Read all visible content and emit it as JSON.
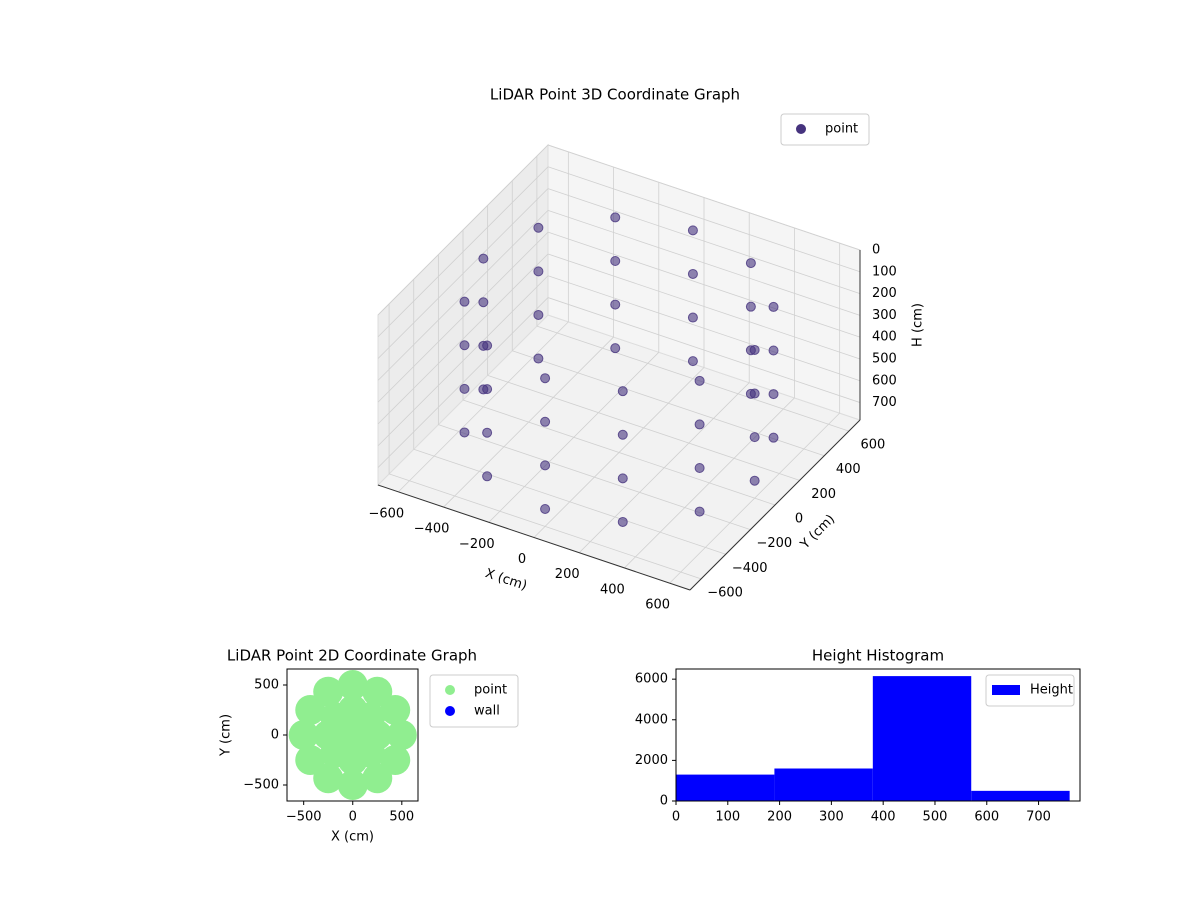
{
  "chart_data": [
    {
      "type": "scatter3d",
      "title": "LiDAR Point 3D Coordinate Graph",
      "xlabel": "X (cm)",
      "ylabel": "Y (cm)",
      "zlabel": "H (cm)",
      "xlim": [
        -690,
        690
      ],
      "ylim": [
        -690,
        690
      ],
      "zlim": [
        0,
        780
      ],
      "z_inverted": true,
      "grid": true,
      "legend": "upper right",
      "xticks": [
        {
          "value": -600,
          "label": "−600"
        },
        {
          "value": -400,
          "label": "−400"
        },
        {
          "value": -200,
          "label": "−200"
        },
        0,
        200,
        400,
        600
      ],
      "yticks": [
        {
          "value": -600,
          "label": "−600"
        },
        {
          "value": -400,
          "label": "−400"
        },
        {
          "value": -200,
          "label": "−200"
        },
        0,
        200,
        400,
        600
      ],
      "zticks": [
        0,
        100,
        200,
        300,
        400,
        500,
        600,
        700
      ],
      "series": [
        {
          "name": "point",
          "color": "#46337e",
          "x": [
            600,
            520,
            300,
            0,
            -300,
            -520,
            -600,
            -520,
            -300,
            0,
            300,
            520,
            600,
            520,
            300,
            0,
            -300,
            -520,
            -600,
            -520,
            -300,
            0,
            300,
            520,
            600,
            520,
            300,
            0,
            -300,
            -520,
            -600,
            -520,
            -300,
            0,
            300,
            520,
            600,
            520,
            300,
            0,
            -300,
            -520,
            -600,
            -520,
            -300,
            0,
            300,
            520
          ],
          "y": [
            0,
            300,
            520,
            600,
            520,
            300,
            0,
            -300,
            -520,
            -600,
            -520,
            -300,
            0,
            300,
            520,
            600,
            520,
            300,
            0,
            -300,
            -520,
            -600,
            -520,
            -300,
            0,
            300,
            520,
            600,
            520,
            300,
            0,
            -300,
            -520,
            -600,
            -520,
            -300,
            0,
            300,
            520,
            600,
            520,
            300,
            0,
            -300,
            -520,
            -600,
            -520,
            -300
          ],
          "z": [
            100,
            100,
            100,
            100,
            100,
            100,
            100,
            100,
            100,
            100,
            100,
            100,
            300,
            300,
            300,
            300,
            300,
            300,
            300,
            300,
            300,
            300,
            300,
            300,
            500,
            500,
            500,
            500,
            500,
            500,
            500,
            500,
            500,
            500,
            500,
            500,
            700,
            700,
            700,
            700,
            700,
            700,
            700,
            700,
            700,
            700,
            700,
            700
          ]
        }
      ]
    },
    {
      "type": "scatter",
      "title": "LiDAR Point 2D Coordinate Graph",
      "xlabel": "X (cm)",
      "ylabel": "Y (cm)",
      "xlim": [
        -670,
        665
      ],
      "ylim": [
        -660,
        660
      ],
      "legend": "outside right",
      "xticks": [
        {
          "value": -500,
          "label": "−500"
        },
        0,
        500
      ],
      "yticks": [
        {
          "value": -500,
          "label": "−500"
        },
        0,
        500
      ],
      "series": [
        {
          "name": "point",
          "color": "#90ee90",
          "x": [
            0,
            250,
            177,
            0,
            -177,
            -250,
            -177,
            0,
            177,
            500,
            433,
            250,
            0,
            -250,
            -433,
            -500,
            -433,
            -250,
            0,
            250,
            433
          ],
          "y": [
            0,
            0,
            177,
            250,
            177,
            0,
            -177,
            -250,
            -177,
            0,
            250,
            433,
            500,
            433,
            250,
            0,
            -250,
            -433,
            -500,
            -433,
            -250
          ]
        },
        {
          "name": "wall",
          "color": "#0000ff",
          "x": [],
          "y": []
        }
      ]
    },
    {
      "type": "histogram",
      "title": "Height Histogram",
      "legend": "upper right",
      "bins": [
        0,
        190,
        380,
        570,
        760
      ],
      "xlim": [
        0,
        780
      ],
      "ylim": [
        0,
        6500
      ],
      "xticks": [
        0,
        100,
        200,
        300,
        400,
        500,
        600,
        700
      ],
      "yticks": [
        0,
        2000,
        4000,
        6000
      ],
      "series": [
        {
          "name": "Height",
          "color": "#0000ff",
          "values": [
            1300,
            1600,
            6150,
            500
          ]
        }
      ]
    }
  ]
}
